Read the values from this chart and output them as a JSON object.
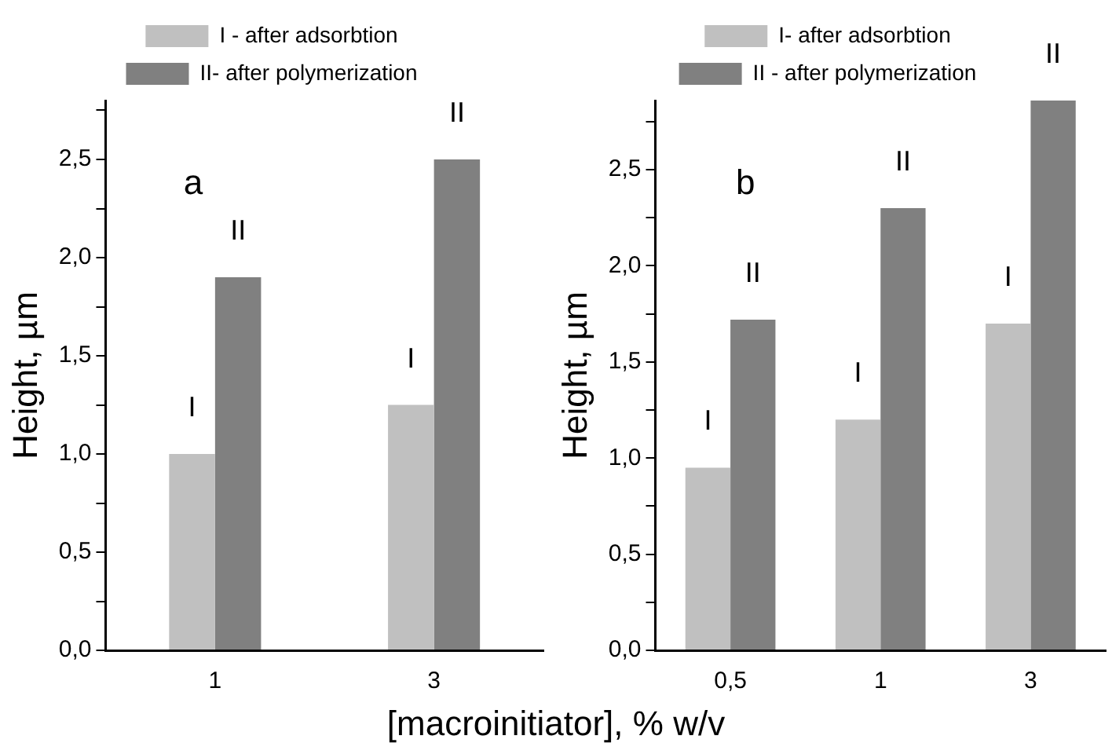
{
  "chart_data": [
    {
      "type": "bar",
      "ylabel": "Height, µm",
      "xlabel": "[macroinitiator], % w/v",
      "categories": [
        "1",
        "3"
      ],
      "legend": "top",
      "series": [
        {
          "name": "I - after adsorbtion",
          "color": "#c0c0c0",
          "values": [
            1.0,
            1.25
          ]
        },
        {
          "name": "II- after polymerization",
          "color": "#808080",
          "values": [
            1.9,
            2.5
          ]
        }
      ],
      "ylim": [
        0,
        2.8
      ],
      "yticks": [
        {
          "value": 0,
          "label": "0,0"
        },
        {
          "value": 0.25,
          "label": null
        },
        {
          "value": 0.5,
          "label": "0,5"
        },
        {
          "value": 0.75,
          "label": null
        },
        {
          "value": 1,
          "label": "1,0"
        },
        {
          "value": 1.25,
          "label": null
        },
        {
          "value": 1.5,
          "label": "1,5"
        },
        {
          "value": 1.75,
          "label": null
        },
        {
          "value": 2,
          "label": "2,0"
        },
        {
          "value": 2.25,
          "label": null
        },
        {
          "value": 2.5,
          "label": "2,5"
        },
        {
          "value": 2.75,
          "label": null
        }
      ],
      "annotations": [
        "a",
        {
          "text": "I",
          "x": "1",
          "y": 1.0
        },
        {
          "text": "II",
          "x": "1",
          "y": 1.9
        },
        {
          "text": "I",
          "x": "3",
          "y": 1.25
        },
        {
          "text": "II",
          "x": "3",
          "y": 2.5
        }
      ]
    },
    {
      "type": "bar",
      "ylabel": "Height, µm",
      "categories": [
        "0,5",
        "1",
        "3"
      ],
      "legend": "top",
      "series": [
        {
          "name": "I- after adsorbtion",
          "color": "#c0c0c0",
          "values": [
            0.95,
            1.2,
            1.7
          ]
        },
        {
          "name": "II - after polymerization",
          "color": "#808080",
          "values": [
            1.72,
            2.3,
            2.86
          ]
        }
      ],
      "ylim": [
        0,
        2.86
      ],
      "yticks": [
        {
          "value": 0,
          "label": "0,0"
        },
        {
          "value": 0.25,
          "label": null
        },
        {
          "value": 0.5,
          "label": "0,5"
        },
        {
          "value": 0.75,
          "label": null
        },
        {
          "value": 1,
          "label": "1,0"
        },
        {
          "value": 1.25,
          "label": null
        },
        {
          "value": 1.5,
          "label": "1,5"
        },
        {
          "value": 1.75,
          "label": null
        },
        {
          "value": 2,
          "label": "2,0"
        },
        {
          "value": 2.25,
          "label": null
        },
        {
          "value": 2.5,
          "label": "2,5"
        },
        {
          "value": 2.75,
          "label": null
        }
      ],
      "annotations": [
        "b",
        {
          "text": "I",
          "x": "0,5",
          "y": 0.95
        },
        {
          "text": "II",
          "x": "0,5",
          "y": 1.72
        },
        {
          "text": "I",
          "x": "1",
          "y": 1.2
        },
        {
          "text": "II",
          "x": "1",
          "y": 2.3
        },
        {
          "text": "I",
          "x": "3",
          "y": 1.7
        },
        {
          "text": "II",
          "x": "3",
          "y": 2.86
        }
      ]
    }
  ]
}
